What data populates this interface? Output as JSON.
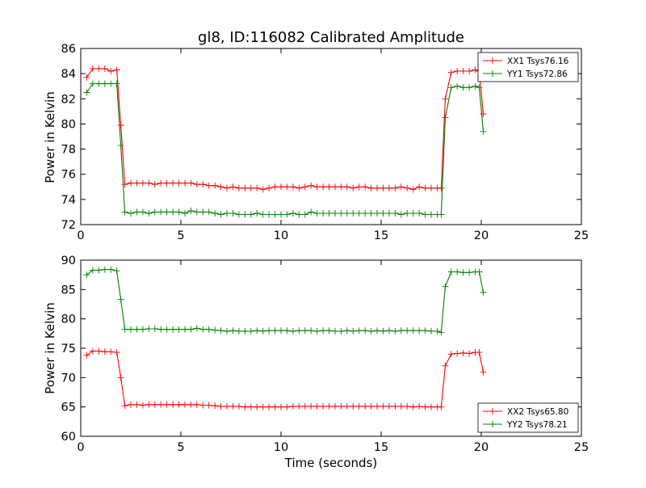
{
  "figure": {
    "title": "gl8, ID:116082 Calibrated Amplitude"
  },
  "chart_data": [
    {
      "type": "line",
      "title": "gl8, ID:116082 Calibrated Amplitude",
      "xlabel": "",
      "ylabel": "Power in Kelvin",
      "xlim": [
        0,
        25
      ],
      "ylim": [
        72,
        86
      ],
      "xticks": [
        0,
        5,
        10,
        15,
        20,
        25
      ],
      "yticks": [
        72,
        74,
        76,
        78,
        80,
        82,
        84,
        86
      ],
      "grid": false,
      "legend_position": "top-right",
      "x": [
        0.3,
        0.6,
        0.9,
        1.2,
        1.5,
        1.8,
        2.0,
        2.2,
        2.5,
        2.8,
        3.1,
        3.4,
        3.7,
        4.0,
        4.3,
        4.6,
        4.9,
        5.2,
        5.5,
        5.8,
        6.1,
        6.4,
        6.7,
        7.0,
        7.3,
        7.6,
        7.9,
        8.2,
        8.5,
        8.8,
        9.1,
        9.4,
        9.7,
        10.0,
        10.3,
        10.6,
        10.9,
        11.2,
        11.5,
        11.8,
        12.1,
        12.4,
        12.7,
        13.0,
        13.3,
        13.6,
        13.9,
        14.2,
        14.5,
        14.8,
        15.1,
        15.4,
        15.7,
        16.0,
        16.3,
        16.6,
        16.9,
        17.2,
        17.5,
        17.8,
        18.0,
        18.2,
        18.5,
        18.8,
        19.1,
        19.4,
        19.7,
        19.9,
        20.1
      ],
      "series": [
        {
          "name": "XX1 Tsys76.16",
          "color": "#ff0000",
          "values": [
            83.7,
            84.4,
            84.4,
            84.4,
            84.2,
            84.3,
            79.9,
            75.2,
            75.3,
            75.3,
            75.3,
            75.3,
            75.2,
            75.3,
            75.3,
            75.3,
            75.3,
            75.3,
            75.3,
            75.2,
            75.2,
            75.1,
            75.1,
            75.0,
            74.9,
            75.0,
            74.9,
            74.9,
            74.9,
            74.9,
            74.8,
            74.9,
            75.0,
            75.0,
            75.0,
            75.0,
            74.9,
            75.0,
            75.1,
            75.0,
            75.0,
            75.0,
            75.0,
            75.0,
            75.0,
            74.9,
            75.0,
            75.0,
            74.9,
            74.9,
            74.9,
            74.9,
            74.9,
            75.0,
            74.9,
            74.8,
            75.0,
            74.9,
            74.9,
            74.9,
            74.9,
            82.0,
            84.1,
            84.2,
            84.2,
            84.2,
            84.3,
            84.2,
            80.8
          ]
        },
        {
          "name": "YY1 Tsys72.86",
          "color": "#008000",
          "values": [
            82.5,
            83.2,
            83.2,
            83.2,
            83.2,
            83.2,
            78.3,
            73.0,
            72.9,
            73.0,
            73.0,
            72.9,
            73.0,
            73.0,
            73.0,
            73.0,
            73.0,
            72.9,
            73.1,
            73.0,
            73.0,
            73.0,
            72.9,
            72.8,
            72.9,
            72.9,
            72.8,
            72.8,
            72.8,
            72.9,
            72.8,
            72.8,
            72.8,
            72.8,
            72.8,
            72.9,
            72.8,
            72.8,
            73.0,
            72.9,
            72.9,
            72.9,
            72.9,
            72.9,
            72.9,
            72.9,
            72.9,
            72.9,
            72.9,
            72.9,
            72.9,
            72.9,
            72.9,
            72.8,
            72.9,
            72.9,
            72.9,
            72.8,
            72.8,
            72.8,
            72.8,
            80.5,
            82.9,
            83.0,
            82.9,
            82.9,
            83.0,
            82.9,
            79.4
          ]
        }
      ]
    },
    {
      "type": "line",
      "title": "",
      "xlabel": "Time (seconds)",
      "ylabel": "Power in Kelvin",
      "xlim": [
        0,
        25
      ],
      "ylim": [
        60,
        90
      ],
      "xticks": [
        0,
        5,
        10,
        15,
        20,
        25
      ],
      "yticks": [
        60,
        65,
        70,
        75,
        80,
        85,
        90
      ],
      "grid": false,
      "legend_position": "bottom-right",
      "x": [
        0.3,
        0.6,
        0.9,
        1.2,
        1.5,
        1.8,
        2.0,
        2.2,
        2.5,
        2.8,
        3.1,
        3.4,
        3.7,
        4.0,
        4.3,
        4.6,
        4.9,
        5.2,
        5.5,
        5.8,
        6.1,
        6.4,
        6.7,
        7.0,
        7.3,
        7.6,
        7.9,
        8.2,
        8.5,
        8.8,
        9.1,
        9.4,
        9.7,
        10.0,
        10.3,
        10.6,
        10.9,
        11.2,
        11.5,
        11.8,
        12.1,
        12.4,
        12.7,
        13.0,
        13.3,
        13.6,
        13.9,
        14.2,
        14.5,
        14.8,
        15.1,
        15.4,
        15.7,
        16.0,
        16.3,
        16.6,
        16.9,
        17.2,
        17.5,
        17.8,
        18.0,
        18.2,
        18.5,
        18.8,
        19.1,
        19.4,
        19.7,
        19.9,
        20.1
      ],
      "series": [
        {
          "name": "XX2 Tsys65.80",
          "color": "#ff0000",
          "values": [
            73.8,
            74.5,
            74.5,
            74.4,
            74.4,
            74.3,
            70.0,
            65.2,
            65.4,
            65.4,
            65.3,
            65.4,
            65.4,
            65.4,
            65.4,
            65.4,
            65.4,
            65.4,
            65.4,
            65.4,
            65.3,
            65.3,
            65.2,
            65.1,
            65.1,
            65.1,
            65.1,
            65.0,
            65.0,
            65.0,
            65.0,
            65.0,
            65.0,
            65.0,
            65.0,
            65.1,
            65.1,
            65.1,
            65.1,
            65.1,
            65.1,
            65.1,
            65.1,
            65.1,
            65.1,
            65.1,
            65.1,
            65.1,
            65.1,
            65.1,
            65.1,
            65.1,
            65.1,
            65.1,
            65.1,
            65.0,
            65.1,
            65.0,
            65.0,
            65.0,
            65.0,
            72.0,
            74.0,
            74.1,
            74.2,
            74.1,
            74.3,
            74.3,
            70.9
          ]
        },
        {
          "name": "YY2 Tsys78.21",
          "color": "#008000",
          "values": [
            87.5,
            88.3,
            88.3,
            88.4,
            88.4,
            88.2,
            83.3,
            78.2,
            78.2,
            78.2,
            78.2,
            78.3,
            78.3,
            78.2,
            78.2,
            78.2,
            78.2,
            78.2,
            78.2,
            78.4,
            78.2,
            78.2,
            78.1,
            78.0,
            77.9,
            78.0,
            77.9,
            77.9,
            77.9,
            78.0,
            77.9,
            78.0,
            78.0,
            78.0,
            78.0,
            77.9,
            78.0,
            78.0,
            78.0,
            77.9,
            78.0,
            78.0,
            77.9,
            77.9,
            78.0,
            77.9,
            78.0,
            78.0,
            77.9,
            78.0,
            77.9,
            78.0,
            77.9,
            78.0,
            78.0,
            78.0,
            78.0,
            78.0,
            77.9,
            77.9,
            77.7,
            85.5,
            88.0,
            88.0,
            87.9,
            87.9,
            88.0,
            88.0,
            84.5
          ]
        }
      ]
    }
  ]
}
